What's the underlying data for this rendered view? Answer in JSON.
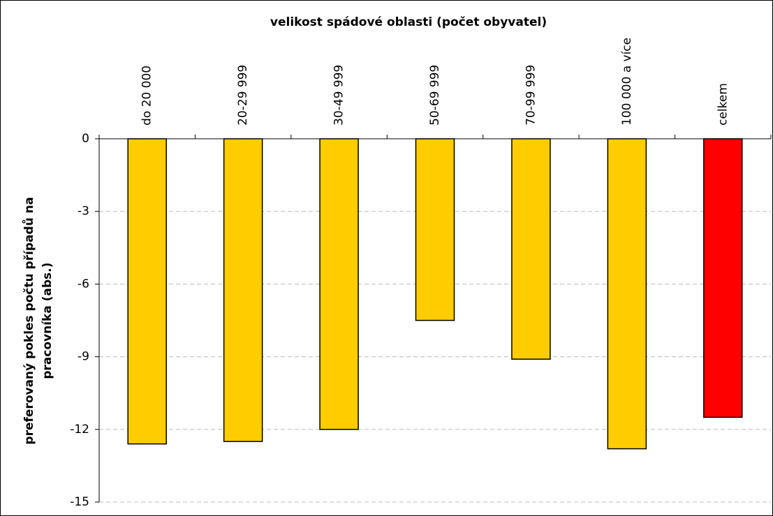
{
  "chart_data": {
    "type": "bar",
    "xlabel": "velikost spádové oblasti (počet obyvatel)",
    "ylabel": [
      "preferovaný pokles počtu případů na",
      "pracovníka (abs.)"
    ],
    "categories": [
      "do 20 000",
      "20-29 999",
      "30-49 999",
      "50-69 999",
      "70-99 999",
      "100 000 a více",
      "celkem"
    ],
    "values": [
      -12.6,
      -12.5,
      -12.0,
      -7.5,
      -9.1,
      -12.8,
      -11.5
    ],
    "colors": [
      "#ffcc00",
      "#ffcc00",
      "#ffcc00",
      "#ffcc00",
      "#ffcc00",
      "#ffcc00",
      "#ff0000"
    ],
    "ylim": [
      -15,
      0
    ],
    "yticks": [
      0,
      -3,
      -6,
      -9,
      -12,
      -15
    ],
    "grid": true
  }
}
